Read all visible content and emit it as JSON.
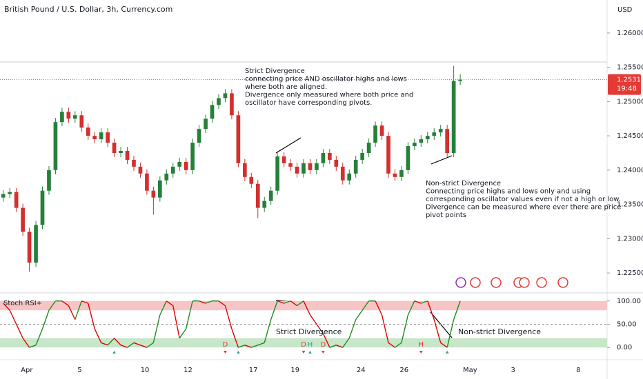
{
  "header": {
    "title": "British Pound / U.S. Dollar, 3h, Currency.com",
    "currency": "USD"
  },
  "chart_data": [
    {
      "type": "candlestick",
      "up_color": "#26803a",
      "down_color": "#d32f2f",
      "open": [
        1.236,
        1.2365,
        1.2368,
        1.2345,
        1.231,
        1.2265,
        1.232,
        1.237,
        1.24,
        1.247,
        1.2485,
        1.2475,
        1.248,
        1.2462,
        1.245,
        1.2445,
        1.2455,
        1.244,
        1.2425,
        1.2428,
        1.2415,
        1.2405,
        1.2395,
        1.237,
        1.236,
        1.2385,
        1.2395,
        1.2405,
        1.2412,
        1.24,
        1.244,
        1.246,
        1.2475,
        1.2495,
        1.2505,
        1.2512,
        1.248,
        1.241,
        1.239,
        1.238,
        1.2345,
        1.2355,
        1.237,
        1.242,
        1.241,
        1.2405,
        1.2395,
        1.241,
        1.24,
        1.241,
        1.2425,
        1.2415,
        1.2405,
        1.2385,
        1.2395,
        1.2415,
        1.2425,
        1.244,
        1.2465,
        1.245,
        1.2395,
        1.239,
        1.24,
        1.2435,
        1.244,
        1.2445,
        1.245,
        1.2455,
        1.246,
        1.2425,
        1.253
      ],
      "high": [
        1.2371,
        1.2374,
        1.2374,
        1.2351,
        1.2316,
        1.2326,
        1.2376,
        1.2406,
        1.2476,
        1.2491,
        1.2491,
        1.2486,
        1.2486,
        1.2468,
        1.2456,
        1.2461,
        1.2461,
        1.2446,
        1.2434,
        1.2434,
        1.2421,
        1.2411,
        1.2401,
        1.2376,
        1.2391,
        1.2401,
        1.2411,
        1.2418,
        1.2418,
        1.2446,
        1.2466,
        1.2481,
        1.2501,
        1.2511,
        1.2518,
        1.2518,
        1.2486,
        1.2416,
        1.2396,
        1.2386,
        1.2361,
        1.2376,
        1.2426,
        1.2426,
        1.2416,
        1.2411,
        1.2416,
        1.2416,
        1.2416,
        1.2431,
        1.2431,
        1.2421,
        1.2411,
        1.2401,
        1.2421,
        1.2431,
        1.2446,
        1.2471,
        1.2471,
        1.2456,
        1.2401,
        1.2406,
        1.2441,
        1.2446,
        1.2451,
        1.2456,
        1.2461,
        1.2466,
        1.2466,
        1.2552,
        1.254
      ],
      "low": [
        1.2354,
        1.2359,
        1.2339,
        1.2304,
        1.2252,
        1.2259,
        1.2314,
        1.2364,
        1.2394,
        1.2464,
        1.2469,
        1.2469,
        1.2456,
        1.2444,
        1.2439,
        1.2439,
        1.2434,
        1.2419,
        1.2419,
        1.2409,
        1.2399,
        1.2389,
        1.2364,
        1.2335,
        1.2354,
        1.2379,
        1.2389,
        1.2399,
        1.2394,
        1.2394,
        1.2434,
        1.2454,
        1.2469,
        1.2489,
        1.2499,
        1.2474,
        1.2404,
        1.2384,
        1.2374,
        1.233,
        1.2339,
        1.2349,
        1.2364,
        1.2404,
        1.2399,
        1.2389,
        1.2389,
        1.2394,
        1.2394,
        1.2404,
        1.2409,
        1.2399,
        1.2379,
        1.2379,
        1.2389,
        1.2409,
        1.2419,
        1.2434,
        1.2444,
        1.2389,
        1.2384,
        1.2384,
        1.2394,
        1.2429,
        1.2434,
        1.2439,
        1.2444,
        1.2449,
        1.2419,
        1.2419,
        1.2524
      ],
      "close": [
        1.2365,
        1.2368,
        1.2345,
        1.231,
        1.2265,
        1.232,
        1.237,
        1.24,
        1.247,
        1.2485,
        1.2475,
        1.248,
        1.2462,
        1.245,
        1.2445,
        1.2455,
        1.244,
        1.2425,
        1.2428,
        1.2415,
        1.2405,
        1.2395,
        1.237,
        1.236,
        1.2385,
        1.2395,
        1.2405,
        1.2412,
        1.24,
        1.244,
        1.246,
        1.2475,
        1.2495,
        1.2505,
        1.2512,
        1.248,
        1.241,
        1.239,
        1.238,
        1.2345,
        1.2355,
        1.237,
        1.242,
        1.241,
        1.2405,
        1.2395,
        1.241,
        1.24,
        1.241,
        1.2425,
        1.2415,
        1.2405,
        1.2385,
        1.2395,
        1.2415,
        1.2425,
        1.244,
        1.2465,
        1.245,
        1.2395,
        1.239,
        1.24,
        1.2435,
        1.244,
        1.2445,
        1.245,
        1.2455,
        1.246,
        1.2425,
        1.253,
        1.2532
      ],
      "xlim": [
        -0.5,
        92.5
      ],
      "xticks": [
        {
          "value": 3.6,
          "label": "Apr"
        },
        {
          "value": 11.7,
          "label": "5"
        },
        {
          "value": 21.7,
          "label": "10"
        },
        {
          "value": 28.3,
          "label": "12"
        },
        {
          "value": 38.3,
          "label": "17"
        },
        {
          "value": 44.7,
          "label": "19"
        },
        {
          "value": 54.8,
          "label": "24"
        },
        {
          "value": 61.4,
          "label": "26"
        },
        {
          "value": 71.5,
          "label": "May"
        },
        {
          "value": 78.1,
          "label": "3"
        },
        {
          "value": 88.1,
          "label": "8"
        }
      ],
      "ylim": [
        1.2226,
        1.2628
      ],
      "yticks": [
        {
          "value": 1.26,
          "label": "1.26000"
        },
        {
          "value": 1.255,
          "label": "1.25500"
        },
        {
          "value": 1.25,
          "label": "1.25000"
        },
        {
          "value": 1.245,
          "label": "1.24500"
        },
        {
          "value": 1.24,
          "label": "1.24000"
        },
        {
          "value": 1.235,
          "label": "1.23500"
        },
        {
          "value": 1.23,
          "label": "1.23000"
        },
        {
          "value": 1.225,
          "label": "1.22500"
        }
      ],
      "last_price": {
        "value": 1.25319,
        "label": "1.25319"
      },
      "countdown": "19:48",
      "annotations": [
        {
          "lines": [
            "Strict Divergence",
            "connecting price AND oscillator highs and lows",
            "where both are aligned.",
            "Divergence only measured where both price and",
            "oscillator have corresponding pivots."
          ]
        },
        {
          "lines": [
            "Non-strict Divergence",
            "Connecting price highs and lows only and using",
            "corresponding oscillator values even if not a high or low.",
            "Divergence can be measured where ever there are price",
            "pivot points"
          ]
        }
      ]
    },
    {
      "type": "line",
      "name": "Stoch RSI+",
      "up_color": "#1e8c1e",
      "down_color": "#e00000",
      "values": [
        95,
        80,
        50,
        20,
        0,
        5,
        40,
        80,
        100,
        100,
        90,
        60,
        100,
        95,
        40,
        10,
        5,
        20,
        5,
        0,
        10,
        5,
        0,
        10,
        70,
        100,
        90,
        20,
        40,
        100,
        100,
        95,
        100,
        100,
        90,
        40,
        0,
        5,
        0,
        5,
        10,
        60,
        100,
        95,
        100,
        90,
        100,
        70,
        50,
        30,
        0,
        5,
        0,
        20,
        60,
        80,
        100,
        100,
        70,
        10,
        0,
        10,
        70,
        100,
        95,
        100,
        60,
        10,
        0,
        60,
        100
      ],
      "ylim": [
        -16,
        113
      ],
      "yticks": [
        {
          "value": 100,
          "label": "100.00"
        },
        {
          "value": 50,
          "label": "50.00"
        },
        {
          "value": 0,
          "label": "0.00"
        }
      ],
      "bands": [
        {
          "from": 80,
          "to": 100,
          "color": "#f7c5c5"
        },
        {
          "from": 0,
          "to": 20,
          "color": "#c8e6c9"
        }
      ],
      "midline": 50,
      "signals": [
        {
          "x": 17,
          "color": "#26a69a"
        },
        {
          "x": 34,
          "label": "D",
          "color": "#e53935"
        },
        {
          "x": 36,
          "color": "#26a69a"
        },
        {
          "x": 46,
          "label": "D",
          "color": "#e53935"
        },
        {
          "x": 47,
          "label": "H",
          "color": "#26a69a"
        },
        {
          "x": 49,
          "label": "D",
          "color": "#e53935"
        },
        {
          "x": 64,
          "label": "H",
          "color": "#e53935"
        },
        {
          "x": 68,
          "color": "#26a69a"
        }
      ],
      "annotations": [
        "Strict Divergence",
        "Non-strict Divergence"
      ]
    }
  ]
}
